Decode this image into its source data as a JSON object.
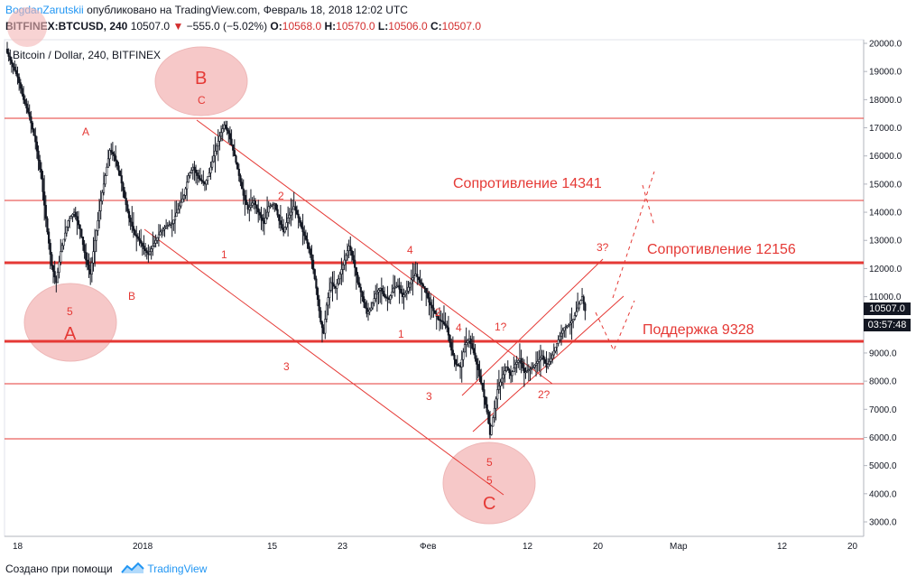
{
  "header": {
    "author": "BogdanZarutskii",
    "published": "опубликовано на TradingView.com, Февраль 18, 2018 12:02 UTC",
    "symbol": "BITFINEX:BTCUSD, 240",
    "last": "10507.0",
    "change": "−555.0 (−5.02%)",
    "open_label": "O:",
    "open": "10568.0",
    "high_label": "H:",
    "high": "10570.0",
    "low_label": "L:",
    "low": "10506.0",
    "close_label": "C:",
    "close": "10507.0"
  },
  "chart_title": "Bitcoin / Dollar, 240, BITFINEX",
  "price_axis": {
    "ticks": [
      "20000.0",
      "19000.0",
      "18000.0",
      "17000.0",
      "16000.0",
      "15000.0",
      "14000.0",
      "13000.0",
      "12000.0",
      "11000.0",
      "10000.0",
      "9000.0",
      "8000.0",
      "7000.0",
      "6000.0",
      "5000.0",
      "4000.0",
      "3000.0"
    ],
    "last_price_box": "10507.0",
    "countdown_box": "03:57:48"
  },
  "time_axis": {
    "labels": [
      "18",
      "2018",
      "15",
      "23",
      "Фев",
      "12",
      "20",
      "Мар",
      "12",
      "20"
    ]
  },
  "annotations": {
    "resistance1": "Сопротивление 14341",
    "resistance2": "Сопротивление 12156",
    "support": "Поддержка 9328",
    "wave_labels": [
      "A",
      "5",
      "A",
      "B",
      "B",
      "C",
      "1",
      "2",
      "3",
      "1",
      "2",
      "3",
      "4",
      "4",
      "5",
      "5",
      "C",
      "1?",
      "2?",
      "3?"
    ]
  },
  "footer": {
    "created_with": "Создано при помощи",
    "brand": "TradingView"
  },
  "colors": {
    "annotation_red": "#e53935",
    "circle_fill": "#f4b6b6",
    "candle": "#131722",
    "brand_blue": "#2196f3"
  },
  "chart_data": {
    "type": "candlestick",
    "title": "Bitcoin / Dollar, 240, BITFINEX",
    "ylim": [
      2500,
      20200
    ],
    "horizontal_levels": [
      17300,
      14341,
      12156,
      9328,
      7850,
      5900
    ],
    "price_path": [
      [
        0,
        19800
      ],
      [
        3,
        19400
      ],
      [
        8,
        18800
      ],
      [
        12,
        18000
      ],
      [
        16,
        17400
      ],
      [
        20,
        16500
      ],
      [
        24,
        15200
      ],
      [
        28,
        13300
      ],
      [
        31,
        12100
      ],
      [
        34,
        11500
      ],
      [
        37,
        12600
      ],
      [
        42,
        13700
      ],
      [
        46,
        14000
      ],
      [
        50,
        13400
      ],
      [
        54,
        12300
      ],
      [
        57,
        11800
      ],
      [
        60,
        13000
      ],
      [
        64,
        14400
      ],
      [
        67,
        15300
      ],
      [
        70,
        16200
      ],
      [
        73,
        16000
      ],
      [
        77,
        15300
      ],
      [
        80,
        14500
      ],
      [
        83,
        13800
      ],
      [
        87,
        13200
      ],
      [
        90,
        13000
      ],
      [
        93,
        12700
      ],
      [
        96,
        12500
      ],
      [
        100,
        12900
      ],
      [
        104,
        13300
      ],
      [
        108,
        13500
      ],
      [
        112,
        13600
      ],
      [
        116,
        14100
      ],
      [
        120,
        14600
      ],
      [
        123,
        15300
      ],
      [
        126,
        15600
      ],
      [
        130,
        15200
      ],
      [
        134,
        15000
      ],
      [
        137,
        15400
      ],
      [
        140,
        16000
      ],
      [
        144,
        16700
      ],
      [
        147,
        17100
      ],
      [
        150,
        16800
      ],
      [
        154,
        16000
      ],
      [
        157,
        15300
      ],
      [
        160,
        14600
      ],
      [
        163,
        14100
      ],
      [
        167,
        14400
      ],
      [
        170,
        14000
      ],
      [
        174,
        13600
      ],
      [
        177,
        14200
      ],
      [
        181,
        14300
      ],
      [
        184,
        13700
      ],
      [
        187,
        13300
      ],
      [
        190,
        13800
      ],
      [
        194,
        14200
      ],
      [
        197,
        13800
      ],
      [
        200,
        13300
      ],
      [
        203,
        12900
      ],
      [
        206,
        12300
      ],
      [
        209,
        11300
      ],
      [
        212,
        10100
      ],
      [
        214,
        9700
      ],
      [
        216,
        10700
      ],
      [
        219,
        11500
      ],
      [
        222,
        11300
      ],
      [
        225,
        11800
      ],
      [
        228,
        12300
      ],
      [
        231,
        12800
      ],
      [
        234,
        12300
      ],
      [
        237,
        11500
      ],
      [
        240,
        11000
      ],
      [
        243,
        10400
      ],
      [
        246,
        10600
      ],
      [
        249,
        11100
      ],
      [
        252,
        11300
      ],
      [
        255,
        11000
      ],
      [
        258,
        10900
      ],
      [
        261,
        11300
      ],
      [
        264,
        11400
      ],
      [
        267,
        11000
      ],
      [
        270,
        11200
      ],
      [
        273,
        11600
      ],
      [
        276,
        11800
      ],
      [
        279,
        11500
      ],
      [
        282,
        11300
      ],
      [
        285,
        10800
      ],
      [
        288,
        10500
      ],
      [
        291,
        10200
      ],
      [
        294,
        10100
      ],
      [
        297,
        9900
      ],
      [
        300,
        9100
      ],
      [
        303,
        8600
      ],
      [
        306,
        8500
      ],
      [
        309,
        9300
      ],
      [
        312,
        9500
      ],
      [
        315,
        9000
      ],
      [
        318,
        8400
      ],
      [
        321,
        7700
      ],
      [
        324,
        6900
      ],
      [
        326,
        6100
      ],
      [
        328,
        6700
      ],
      [
        331,
        7700
      ],
      [
        334,
        8100
      ],
      [
        337,
        8500
      ],
      [
        340,
        8200
      ],
      [
        343,
        8600
      ],
      [
        346,
        8800
      ],
      [
        349,
        8300
      ],
      [
        352,
        8400
      ],
      [
        355,
        8500
      ],
      [
        358,
        8700
      ],
      [
        361,
        8900
      ],
      [
        364,
        8500
      ],
      [
        367,
        8800
      ],
      [
        370,
        9200
      ],
      [
        373,
        9600
      ],
      [
        376,
        9900
      ],
      [
        379,
        10000
      ],
      [
        382,
        10200
      ],
      [
        385,
        10600
      ],
      [
        388,
        11000
      ],
      [
        390,
        10500
      ]
    ]
  }
}
